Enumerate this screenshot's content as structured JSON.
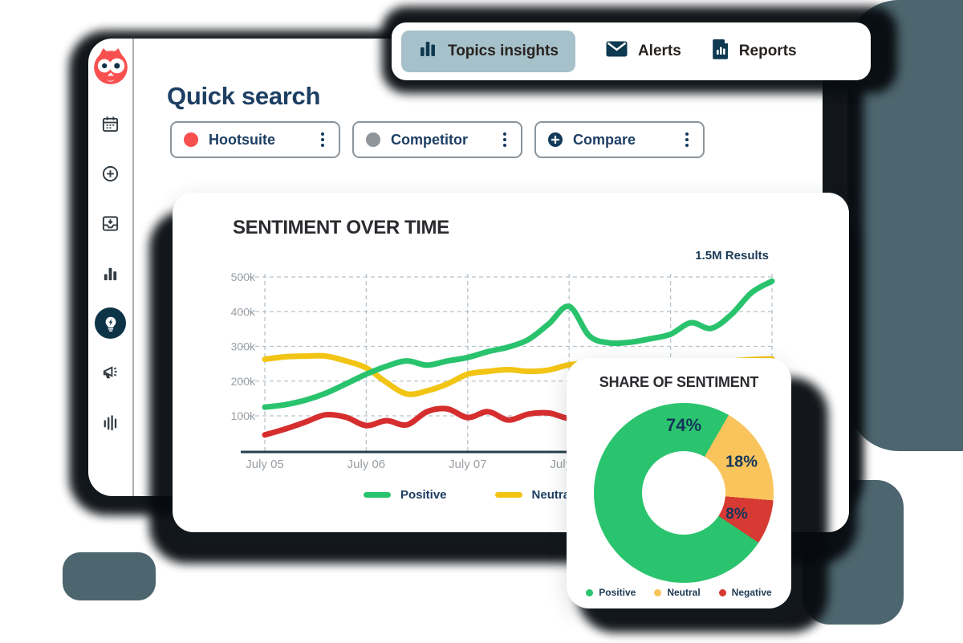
{
  "decor": {
    "teal": "#4d656e",
    "shadow": "#070b0f"
  },
  "topbar": {
    "selected_bg": "#a6c1ca",
    "tabs": [
      {
        "label": "Topics insights",
        "icon": "bar-chart-icon",
        "selected": true
      },
      {
        "label": "Alerts",
        "icon": "envelope-icon",
        "selected": false
      },
      {
        "label": "Reports",
        "icon": "report-document-icon",
        "selected": false
      }
    ]
  },
  "sidebar": {
    "logo": "hootsuite-owl-logo",
    "logo_color": "#f8504f",
    "items": [
      {
        "icon": "calendar-icon",
        "active": false
      },
      {
        "icon": "add-circle-icon",
        "active": false
      },
      {
        "icon": "inbox-download-icon",
        "active": false
      },
      {
        "icon": "bar-chart-icon",
        "active": false
      },
      {
        "icon": "lightbulb-bolt-icon",
        "active": true
      },
      {
        "icon": "megaphone-icon",
        "active": false
      },
      {
        "icon": "signal-bars-icon",
        "active": false
      }
    ],
    "active_bg": "#0d3347"
  },
  "header": {
    "title": "Quick search"
  },
  "filters": [
    {
      "label": "Hootsuite",
      "marker": "red-dot",
      "marker_color": "#f8504f"
    },
    {
      "label": "Competitor",
      "marker": "gray-dot",
      "marker_color": "#90959a"
    },
    {
      "label": "Compare",
      "marker": "plus-circle",
      "marker_color": "#14395b"
    }
  ],
  "chart_data": [
    {
      "type": "line",
      "title": "SENTIMENT OVER TIME",
      "results_label": "1.5M Results",
      "x_tick_labels": [
        "July 05",
        "July 06",
        "July 07",
        "July 08"
      ],
      "y_tick_labels": [
        "500k",
        "400k",
        "300k",
        "200k",
        "100k"
      ],
      "y_tick_values": [
        500000,
        400000,
        300000,
        200000,
        100000
      ],
      "ylim": [
        0,
        520000
      ],
      "grid": "dashed",
      "grid_color": "#b6c3cc",
      "axis_color": "#24404d",
      "tick_label_color": "#9aa0a6",
      "legend_position": "bottom",
      "legend_visible": [
        "Positive",
        "Neutral"
      ],
      "series": [
        {
          "name": "Positive",
          "color": "#29c36d",
          "values_k": [
            125,
            132,
            145,
            165,
            192,
            220,
            243,
            258,
            246,
            258,
            268,
            285,
            298,
            320,
            365,
            415,
            330,
            310,
            312,
            322,
            335,
            368,
            352,
            392,
            455,
            488
          ]
        },
        {
          "name": "Neutral",
          "color": "#f2c414",
          "values_k": [
            263,
            270,
            272,
            272,
            258,
            238,
            196,
            163,
            172,
            192,
            220,
            228,
            233,
            228,
            232,
            247,
            250,
            242,
            238,
            242,
            248,
            252,
            255,
            258,
            262,
            264
          ]
        },
        {
          "name": "Negative",
          "color": "#d62e2e",
          "values_k": [
            45,
            62,
            82,
            103,
            96,
            72,
            86,
            74,
            112,
            120,
            95,
            112,
            88,
            105,
            108,
            92,
            95,
            90,
            92,
            90,
            91,
            92,
            90,
            91,
            90,
            90
          ]
        }
      ]
    },
    {
      "type": "pie",
      "variant": "donut",
      "title": "SHARE OF SENTIMENT",
      "labels": [
        "Positive",
        "Neutral",
        "Negative"
      ],
      "values_pct": [
        74,
        18,
        8
      ],
      "pct_labels": [
        "74%",
        "18%",
        "8%"
      ],
      "colors": [
        "#2bc46e",
        "#f9c45c",
        "#d63a33"
      ],
      "start_angle_deg": 30,
      "inner_radius_ratio": 0.465,
      "legend_position": "bottom"
    }
  ]
}
